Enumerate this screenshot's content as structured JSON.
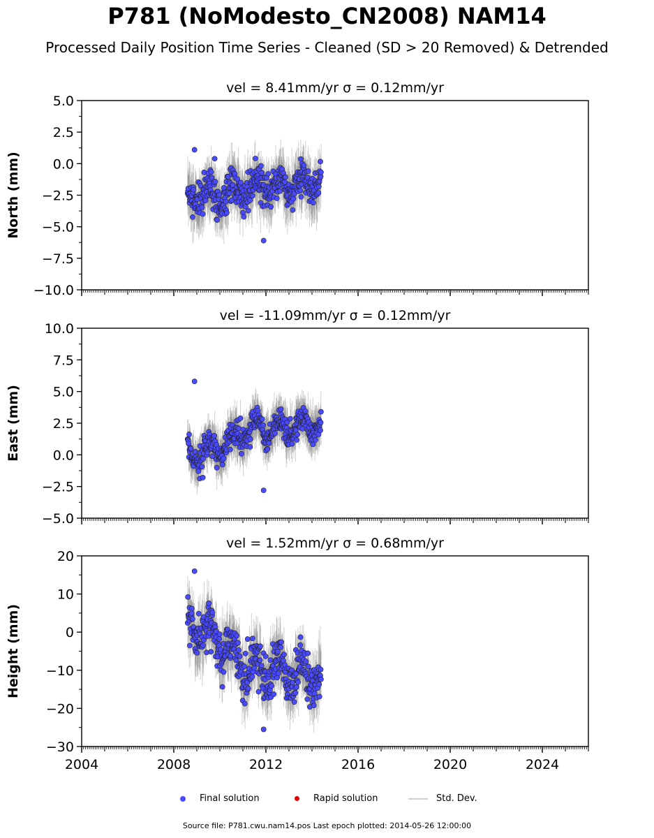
{
  "title": "P781 (NoModesto_CN2008) NAM14",
  "subtitle": "Processed Daily Position Time Series - Cleaned (SD > 20 Removed) & Detrended",
  "footer": "Source file: P781.cwu.nam14.pos  Last epoch plotted: 2014-05-26 12:00:00",
  "legend": {
    "final": "Final solution",
    "rapid": "Rapid solution",
    "std": "Std. Dev."
  },
  "colors": {
    "final": "#4a4aff",
    "rapid": "#dd0000",
    "std": "#b0b0b0"
  },
  "chart_data": [
    {
      "type": "scatter",
      "panel": "north",
      "title": "vel = 8.41mm/yr   σ = 0.12mm/yr",
      "ylabel": "North (mm)",
      "xlim": [
        2004,
        2026
      ],
      "ylim": [
        -10,
        5
      ],
      "yticks": [
        5.0,
        2.5,
        0.0,
        -2.5,
        -5.0,
        -7.5,
        -10.0
      ],
      "ytick_labels": [
        "5.0",
        "2.5",
        "0.0",
        "−2.5",
        "−5.0",
        "−7.5",
        "−10.0"
      ],
      "xticks": [
        2004,
        2008,
        2012,
        2016,
        2020,
        2024
      ],
      "show_xtick_labels": false,
      "series": [
        {
          "name": "Final solution",
          "x_range": [
            2008.6,
            2014.4
          ],
          "trend": [
            [
              2008.6,
              -2.8
            ],
            [
              2010.0,
              -2.4
            ],
            [
              2012.0,
              -1.9
            ],
            [
              2014.4,
              -1.6
            ]
          ],
          "seasonal_amplitude": 0.7,
          "scatter": 0.9,
          "std_dev": 1.4,
          "min": -6.1,
          "max": 1.1
        }
      ]
    },
    {
      "type": "scatter",
      "panel": "east",
      "title": "vel = -11.09mm/yr   σ = 0.12mm/yr",
      "ylabel": "East (mm)",
      "xlim": [
        2004,
        2026
      ],
      "ylim": [
        -5,
        10
      ],
      "yticks": [
        10.0,
        7.5,
        5.0,
        2.5,
        0.0,
        -2.5,
        -5.0
      ],
      "ytick_labels": [
        "10.0",
        "7.5",
        "5.0",
        "2.5",
        "0.0",
        "−2.5",
        "−5.0"
      ],
      "xticks": [
        2004,
        2008,
        2012,
        2016,
        2020,
        2024
      ],
      "show_xtick_labels": false,
      "series": [
        {
          "name": "Final solution",
          "x_range": [
            2008.6,
            2014.4
          ],
          "trend": [
            [
              2008.6,
              -0.2
            ],
            [
              2010.0,
              0.6
            ],
            [
              2011.2,
              2.0
            ],
            [
              2012.5,
              2.1
            ],
            [
              2014.4,
              2.4
            ]
          ],
          "seasonal_amplitude": 0.7,
          "scatter": 0.6,
          "std_dev": 1.2,
          "min": -2.8,
          "max": 5.8
        }
      ]
    },
    {
      "type": "scatter",
      "panel": "height",
      "title": "vel = 1.52mm/yr   σ = 0.68mm/yr",
      "ylabel": "Height (mm)",
      "xlim": [
        2004,
        2026
      ],
      "ylim": [
        -30,
        20
      ],
      "yticks": [
        20,
        10,
        0,
        -10,
        -20,
        -30
      ],
      "ytick_labels": [
        "20",
        "10",
        "0",
        "−10",
        "−20",
        "−30"
      ],
      "xticks": [
        2004,
        2008,
        2012,
        2016,
        2020,
        2024
      ],
      "xtick_labels": [
        "2004",
        "2008",
        "2012",
        "2016",
        "2020",
        "2024"
      ],
      "show_xtick_labels": true,
      "series": [
        {
          "name": "Final solution",
          "x_range": [
            2008.6,
            2014.4
          ],
          "trend": [
            [
              2008.6,
              2.0
            ],
            [
              2010.0,
              -2.0
            ],
            [
              2011.0,
              -9.0
            ],
            [
              2012.5,
              -10.0
            ],
            [
              2014.4,
              -12.0
            ]
          ],
          "seasonal_amplitude": 3.5,
          "scatter": 3.5,
          "std_dev": 5.0,
          "min": -25.5,
          "max": 16.0
        }
      ]
    }
  ]
}
